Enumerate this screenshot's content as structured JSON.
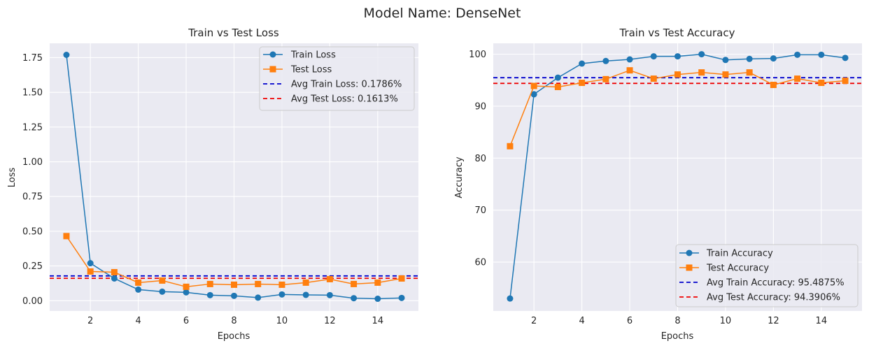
{
  "figure": {
    "suptitle": "Model Name: DenseNet"
  },
  "chart_data": [
    {
      "type": "line",
      "title": "Train vs Test Loss",
      "xlabel": "Epochs",
      "ylabel": "Loss",
      "x": [
        1,
        2,
        3,
        4,
        5,
        6,
        7,
        8,
        9,
        10,
        11,
        12,
        13,
        14,
        15
      ],
      "xlim": [
        0.3,
        15.7
      ],
      "ylim": [
        -0.074,
        1.853
      ],
      "xticks": [
        2,
        4,
        6,
        8,
        10,
        12,
        14
      ],
      "xtick_labels": [
        "2",
        "4",
        "6",
        "8",
        "10",
        "12",
        "14"
      ],
      "yticks": [
        0,
        0.25,
        0.5,
        0.75,
        1.0,
        1.25,
        1.5,
        1.75
      ],
      "ytick_labels": [
        "0.00",
        "0.25",
        "0.50",
        "0.75",
        "1.00",
        "1.25",
        "1.50",
        "1.75"
      ],
      "grid": true,
      "legend_position": "top-right",
      "series": [
        {
          "name": "Train Loss",
          "marker": "circle",
          "color": "#1f77b4",
          "values": [
            1.77,
            0.27,
            0.16,
            0.08,
            0.065,
            0.06,
            0.04,
            0.035,
            0.022,
            0.045,
            0.042,
            0.04,
            0.018,
            0.014,
            0.02
          ]
        },
        {
          "name": "Test Loss",
          "marker": "square",
          "color": "#ff7f0e",
          "values": [
            0.465,
            0.21,
            0.205,
            0.13,
            0.145,
            0.1,
            0.12,
            0.115,
            0.12,
            0.115,
            0.13,
            0.155,
            0.12,
            0.13,
            0.16
          ]
        }
      ],
      "hlines": [
        {
          "name": "Avg Train Loss: 0.1786%",
          "value": 0.1786,
          "color": "#0000cc"
        },
        {
          "name": "Avg Test Loss: 0.1613%",
          "value": 0.1613,
          "color": "#ee0000"
        }
      ]
    },
    {
      "type": "line",
      "title": "Train vs Test Accuracy",
      "xlabel": "Epochs",
      "ylabel": "Accuracy",
      "x": [
        1,
        2,
        3,
        4,
        5,
        6,
        7,
        8,
        9,
        10,
        11,
        12,
        13,
        14,
        15
      ],
      "xlim": [
        0.3,
        15.7
      ],
      "ylim": [
        50.6,
        102.1
      ],
      "xticks": [
        2,
        4,
        6,
        8,
        10,
        12,
        14
      ],
      "xtick_labels": [
        "2",
        "4",
        "6",
        "8",
        "10",
        "12",
        "14"
      ],
      "yticks": [
        60,
        70,
        80,
        90,
        100
      ],
      "ytick_labels": [
        "60",
        "70",
        "80",
        "90",
        "100"
      ],
      "grid": true,
      "legend_position": "bottom-right",
      "series": [
        {
          "name": "Train Accuracy",
          "marker": "circle",
          "color": "#1f77b4",
          "values": [
            53.0,
            92.3,
            95.5,
            98.2,
            98.7,
            99.0,
            99.6,
            99.6,
            100.0,
            98.9,
            99.1,
            99.2,
            99.9,
            99.9,
            99.3
          ]
        },
        {
          "name": "Test Accuracy",
          "marker": "square",
          "color": "#ff7f0e",
          "values": [
            82.3,
            93.9,
            93.7,
            94.5,
            95.2,
            96.9,
            95.3,
            96.1,
            96.5,
            96.1,
            96.5,
            94.1,
            95.3,
            94.5,
            94.9
          ]
        }
      ],
      "hlines": [
        {
          "name": "Avg Train Accuracy: 95.4875%",
          "value": 95.4875,
          "color": "#0000cc"
        },
        {
          "name": "Avg Test Accuracy: 94.3906%",
          "value": 94.3906,
          "color": "#ee0000"
        }
      ]
    }
  ]
}
